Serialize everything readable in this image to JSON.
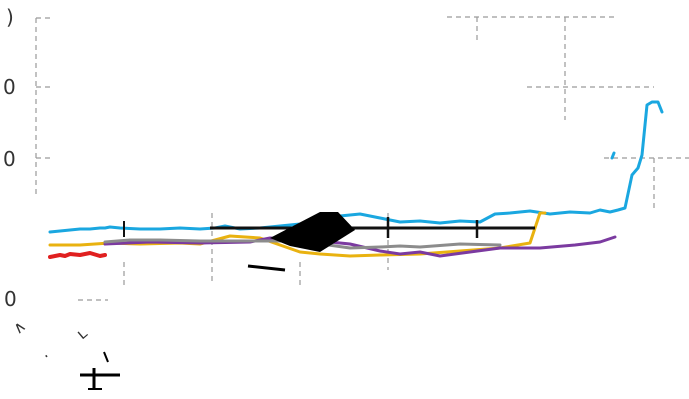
{
  "chart_data": {
    "type": "line",
    "title": "",
    "xlabel": "",
    "ylabel": "",
    "grid": true,
    "ytick_labels": [
      ")",
      "0",
      "0",
      "0"
    ],
    "fragments": [
      "∧",
      "·",
      "ʟ"
    ],
    "series": [
      {
        "color": "#1aa7e0",
        "points": [
          [
            50,
            232
          ],
          [
            60,
            231
          ],
          [
            70,
            230
          ],
          [
            80,
            229
          ],
          [
            90,
            229
          ],
          [
            100,
            228
          ],
          [
            105,
            228
          ],
          [
            110,
            227
          ],
          [
            120,
            228
          ],
          [
            140,
            229
          ],
          [
            160,
            229
          ],
          [
            180,
            228
          ],
          [
            200,
            229
          ],
          [
            215,
            228
          ],
          [
            225,
            226
          ],
          [
            240,
            229
          ],
          [
            260,
            228
          ],
          [
            280,
            226
          ],
          [
            300,
            224
          ],
          [
            320,
            220
          ],
          [
            340,
            216
          ],
          [
            360,
            214
          ],
          [
            380,
            218
          ],
          [
            400,
            222
          ],
          [
            420,
            221
          ],
          [
            440,
            223
          ],
          [
            460,
            221
          ],
          [
            480,
            222
          ],
          [
            495,
            214
          ],
          [
            510,
            213
          ],
          [
            530,
            211
          ],
          [
            550,
            214
          ],
          [
            570,
            212
          ],
          [
            590,
            213
          ],
          [
            600,
            210
          ],
          [
            610,
            212
          ],
          [
            618,
            210
          ],
          [
            625,
            208
          ],
          [
            632,
            175
          ],
          [
            638,
            168
          ],
          [
            642,
            155
          ],
          [
            647,
            105
          ],
          [
            652,
            102
          ],
          [
            658,
            102
          ],
          [
            662,
            112
          ]
        ]
      },
      {
        "color": "#1aa7e0",
        "points": [
          [
            612,
            158
          ],
          [
            614,
            153
          ]
        ]
      },
      {
        "color": "#e9b210",
        "points": [
          [
            50,
            245
          ],
          [
            80,
            245
          ],
          [
            110,
            243
          ],
          [
            140,
            244
          ],
          [
            180,
            243
          ],
          [
            200,
            244
          ],
          [
            230,
            236
          ],
          [
            260,
            238
          ],
          [
            300,
            252
          ],
          [
            320,
            254
          ],
          [
            350,
            256
          ],
          [
            380,
            255
          ],
          [
            420,
            254
          ],
          [
            460,
            251
          ],
          [
            500,
            248
          ],
          [
            530,
            243
          ],
          [
            535,
            228
          ],
          [
            540,
            213
          ],
          [
            545,
            213
          ]
        ]
      },
      {
        "color": "#7b3aa0",
        "points": [
          [
            105,
            244
          ],
          [
            150,
            242
          ],
          [
            200,
            243
          ],
          [
            250,
            242
          ],
          [
            270,
            238
          ],
          [
            300,
            240
          ],
          [
            330,
            242
          ],
          [
            350,
            244
          ],
          [
            380,
            251
          ],
          [
            400,
            254
          ],
          [
            420,
            252
          ],
          [
            440,
            256
          ],
          [
            470,
            252
          ],
          [
            500,
            248
          ],
          [
            540,
            248
          ],
          [
            575,
            245
          ],
          [
            600,
            242
          ],
          [
            615,
            237
          ]
        ]
      },
      {
        "color": "#8c8c8c",
        "points": [
          [
            105,
            242
          ],
          [
            130,
            240
          ],
          [
            160,
            240
          ],
          [
            200,
            241
          ],
          [
            300,
            241
          ],
          [
            350,
            248
          ],
          [
            380,
            247
          ],
          [
            400,
            246
          ],
          [
            420,
            247
          ],
          [
            460,
            244
          ],
          [
            500,
            245
          ]
        ]
      },
      {
        "color": "#e02020",
        "points": [
          [
            50,
            257
          ],
          [
            60,
            255
          ],
          [
            65,
            256
          ],
          [
            70,
            254
          ],
          [
            80,
            255
          ],
          [
            90,
            253
          ],
          [
            100,
            256
          ],
          [
            105,
            255
          ]
        ]
      }
    ],
    "plot_frame": {
      "x0": 36,
      "y0": 15,
      "x1": 689,
      "y1": 300
    }
  }
}
